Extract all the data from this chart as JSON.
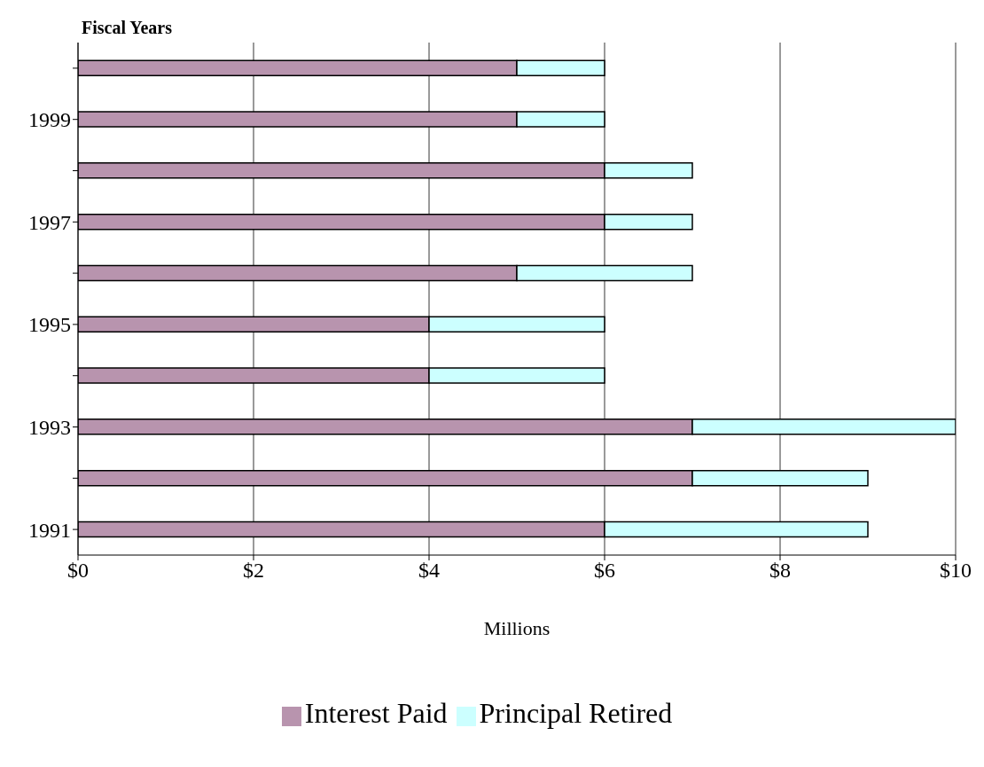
{
  "chart_data": {
    "type": "bar",
    "orientation": "horizontal",
    "stacked": true,
    "ylabel": "Fiscal Years",
    "xlabel": "Millions",
    "categories": [
      null,
      "1999",
      null,
      "1997",
      null,
      "1995",
      null,
      "1993",
      null,
      "1991"
    ],
    "series": [
      {
        "name": "Interest Paid",
        "color": "#b894ae",
        "values": [
          5,
          5,
          6,
          6,
          5,
          4,
          4,
          7,
          7,
          6
        ]
      },
      {
        "name": "Principal Retired",
        "color": "#ccffff",
        "values": [
          1,
          1,
          1,
          1,
          2,
          2,
          2,
          3,
          2,
          3
        ]
      }
    ],
    "xlim": [
      0,
      10
    ],
    "xticks": [
      {
        "value": 0,
        "label": "$0"
      },
      {
        "value": 2,
        "label": "$2"
      },
      {
        "value": 4,
        "label": "$4"
      },
      {
        "value": 6,
        "label": "$6"
      },
      {
        "value": 8,
        "label": "$8"
      },
      {
        "value": 10,
        "label": "$10"
      }
    ],
    "grid": "x",
    "legend": "bottom"
  }
}
